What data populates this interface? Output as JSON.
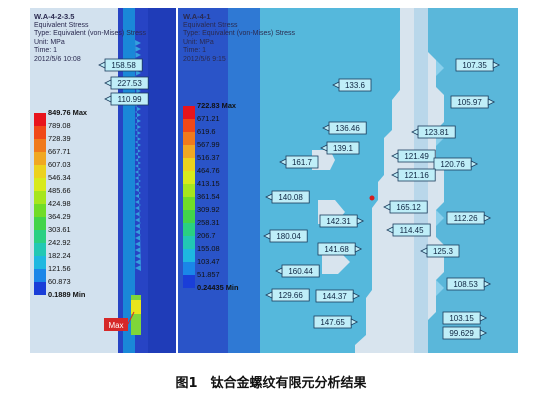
{
  "left_panel": {
    "title": "W.A-4-2-3.5",
    "header_lines": [
      "Equivalent Stress",
      "Type: Equivalent (von-Mises) Stress",
      "Unit: MPa",
      "Time: 1",
      "2012/5/6 10:08"
    ],
    "legend": {
      "max": "849.76 Max",
      "values": [
        "789.08",
        "728.39",
        "667.71",
        "607.03",
        "546.34",
        "485.66",
        "424.98",
        "364.29",
        "303.61",
        "242.92",
        "182.24",
        "121.56",
        "60.873"
      ],
      "min": "0.1889 Min"
    },
    "probes": [
      "158.58",
      "227.53",
      "110.99"
    ],
    "max_tag": "Max"
  },
  "right_panel": {
    "title": "W.A-4-1",
    "header_lines": [
      "Equivalent Stress",
      "Type: Equivalent (von-Mises) Stress",
      "Unit: MPa",
      "Time: 1",
      "2012/5/6 9:15"
    ],
    "legend": {
      "max": "722.83 Max",
      "values": [
        "671.21",
        "619.6",
        "567.99",
        "516.37",
        "464.76",
        "413.15",
        "361.54",
        "309.92",
        "258.31",
        "206.7",
        "155.08",
        "103.47",
        "51.857"
      ],
      "min": "0.24435 Min"
    },
    "probes": [
      "133.6",
      "136.46",
      "139.1",
      "161.7",
      "140.08",
      "142.31",
      "180.04",
      "141.68",
      "160.44",
      "129.66",
      "144.37",
      "147.65",
      "107.35",
      "105.97",
      "123.81",
      "121.49",
      "120.76",
      "121.16",
      "165.12",
      "112.26",
      "114.45",
      "125.3",
      "108.53",
      "103.15",
      "99.629"
    ]
  },
  "legend_colors": [
    "#e8141c",
    "#f04818",
    "#f07a1c",
    "#f0a822",
    "#ecd21e",
    "#d8ea1c",
    "#a6e61e",
    "#70dc28",
    "#42d44a",
    "#2ad082",
    "#22c8b4",
    "#1eb8e0",
    "#1a86e8",
    "#1a3ed8"
  ],
  "caption": "图1　钛合金螺纹有限元分析结果"
}
